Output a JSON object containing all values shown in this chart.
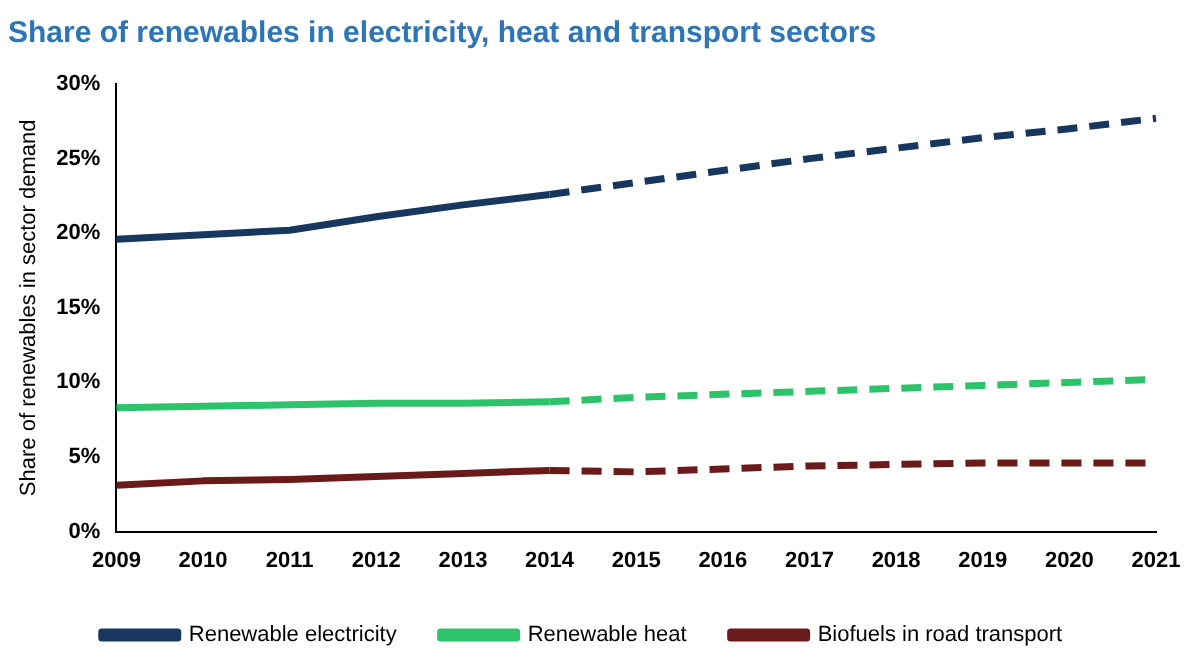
{
  "chart_data": {
    "type": "line",
    "title": "Share of renewables in electricity, heat and transport sectors",
    "ylabel": "Share of renewables in sector demand",
    "categories": [
      "2009",
      "2010",
      "2011",
      "2012",
      "2013",
      "2014",
      "2015",
      "2016",
      "2017",
      "2018",
      "2019",
      "2020",
      "2021"
    ],
    "series": [
      {
        "name": "Renewable electricity",
        "color": "#17375e",
        "line_style": "solid",
        "values": [
          19.6,
          19.9,
          20.2,
          21.1,
          21.9,
          22.6,
          null,
          null,
          null,
          null,
          null,
          null,
          null
        ]
      },
      {
        "color": "#17375e",
        "line_style": "dashed",
        "values": [
          null,
          null,
          null,
          null,
          null,
          22.6,
          23.4,
          24.2,
          25.0,
          25.7,
          26.4,
          27.0,
          27.7
        ]
      },
      {
        "name": "Renewable heat",
        "color": "#2cc36b",
        "line_style": "solid",
        "values": [
          8.3,
          8.4,
          8.5,
          8.6,
          8.6,
          8.7,
          null,
          null,
          null,
          null,
          null,
          null,
          null
        ]
      },
      {
        "color": "#2cc36b",
        "line_style": "dashed",
        "values": [
          null,
          null,
          null,
          null,
          null,
          8.7,
          9.0,
          9.2,
          9.4,
          9.6,
          9.8,
          10.0,
          10.2
        ]
      },
      {
        "name": "Biofuels in road transport",
        "color": "#6b1a1a",
        "line_style": "solid",
        "values": [
          3.1,
          3.4,
          3.5,
          3.7,
          3.9,
          4.1,
          null,
          null,
          null,
          null,
          null,
          null,
          null
        ]
      },
      {
        "color": "#6b1a1a",
        "line_style": "dashed",
        "values": [
          null,
          null,
          null,
          null,
          null,
          4.1,
          4.0,
          4.2,
          4.4,
          4.5,
          4.6,
          4.6,
          4.6
        ]
      }
    ],
    "ylim": [
      0,
      30
    ],
    "yticks": [
      {
        "value": 0,
        "label": "0%"
      },
      {
        "value": 5,
        "label": "5%"
      },
      {
        "value": 10,
        "label": "10%"
      },
      {
        "value": 15,
        "label": "15%"
      },
      {
        "value": 20,
        "label": "20%"
      },
      {
        "value": 25,
        "label": "25%"
      },
      {
        "value": 30,
        "label": "30%"
      }
    ],
    "grid": false,
    "legend": "bottom",
    "marker": "none"
  }
}
